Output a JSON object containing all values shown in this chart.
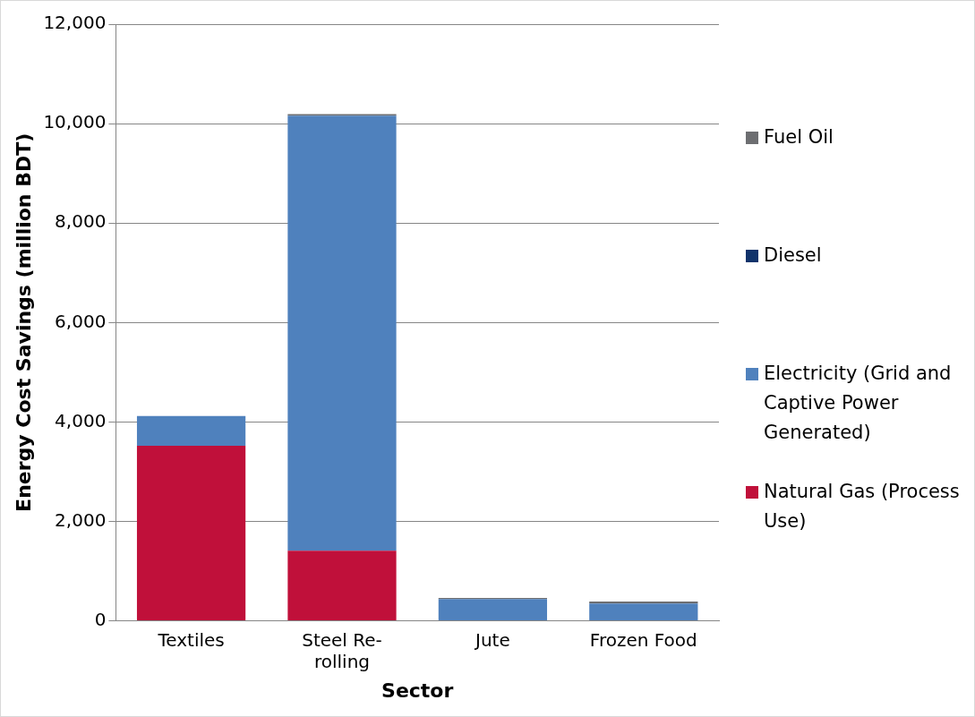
{
  "chart_data": {
    "type": "bar",
    "stacked": true,
    "xlabel": "Sector",
    "ylabel": "Energy Cost Savings (million BDT)",
    "categories": [
      "Textiles",
      "Steel Re-rolling",
      "Jute",
      "Frozen Food"
    ],
    "series": [
      {
        "name": "Natural Gas (Process Use)",
        "color": "#c0103a",
        "values": [
          3520,
          1410,
          0,
          0
        ]
      },
      {
        "name": "Electricity (Grid and Captive Power Generated)",
        "color": "#4f81bd",
        "values": [
          600,
          8750,
          440,
          350
        ]
      },
      {
        "name": "Diesel",
        "color": "#10336b",
        "values": [
          0,
          0,
          0,
          0
        ]
      },
      {
        "name": "Fuel Oil",
        "color": "#6d6e71",
        "values": [
          0,
          30,
          20,
          40
        ]
      }
    ],
    "ylim": [
      0,
      12000
    ],
    "yticks": [
      0,
      {
        "value": 2000,
        "label": "2,000"
      },
      {
        "value": 4000,
        "label": "4,000"
      },
      {
        "value": 6000,
        "label": "6,000"
      },
      {
        "value": 8000,
        "label": "8,000"
      },
      {
        "value": 10000,
        "label": "10,000"
      },
      {
        "value": 12000,
        "label": "12,000"
      }
    ],
    "grid": "y",
    "legend": "right"
  }
}
